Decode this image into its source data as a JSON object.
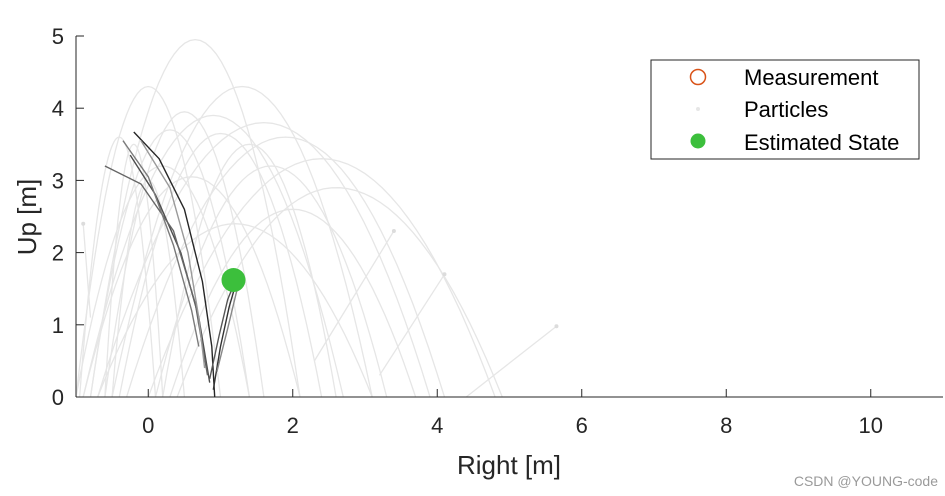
{
  "chart_data": {
    "type": "line",
    "xlabel": "Right [m]",
    "ylabel": "Up [m]",
    "xlim": [
      -1,
      11
    ],
    "ylim": [
      0,
      5
    ],
    "xticks": [
      "0",
      "2",
      "4",
      "6",
      "8",
      "10"
    ],
    "yticks": [
      "0",
      "1",
      "2",
      "3",
      "4",
      "5"
    ],
    "grid": false,
    "legend_location": "top-right",
    "legend": [
      {
        "label": "Measurement",
        "marker": "open-circle",
        "color": "#d95319"
      },
      {
        "label": "Particles",
        "marker": "dot",
        "color": "#e6e6e6"
      },
      {
        "label": "Estimated State",
        "marker": "filled-circle",
        "color": "#3cbf3c"
      }
    ],
    "estimated_state": {
      "x": 1.18,
      "y": 1.62,
      "color": "#3cbf3c"
    },
    "particle_color": "#e6e6e6",
    "particle_trajectories": [
      {
        "x0": -1.0,
        "apex_x": 0.0,
        "apex_y": 4.3,
        "x1": 1.0
      },
      {
        "x0": -0.8,
        "apex_x": 0.65,
        "apex_y": 4.95,
        "x1": 2.1
      },
      {
        "x0": -0.6,
        "apex_x": 0.5,
        "apex_y": 3.95,
        "x1": 1.6
      },
      {
        "x0": -0.5,
        "apex_x": 1.3,
        "apex_y": 4.3,
        "x1": 3.1
      },
      {
        "x0": -0.9,
        "apex_x": 0.9,
        "apex_y": 3.9,
        "x1": 2.7
      },
      {
        "x0": -0.7,
        "apex_x": 1.6,
        "apex_y": 3.8,
        "x1": 3.9
      },
      {
        "x0": -0.3,
        "apex_x": 1.9,
        "apex_y": 3.6,
        "x1": 4.1
      },
      {
        "x0": 0.0,
        "apex_x": 2.4,
        "apex_y": 3.3,
        "x1": 4.8
      },
      {
        "x0": -0.8,
        "apex_x": 0.3,
        "apex_y": 3.7,
        "x1": 1.4
      },
      {
        "x0": -0.4,
        "apex_x": 1.0,
        "apex_y": 3.65,
        "x1": 2.4
      },
      {
        "x0": -1.0,
        "apex_x": 0.2,
        "apex_y": 3.2,
        "x1": 1.4
      },
      {
        "x0": 0.2,
        "apex_x": 1.4,
        "apex_y": 3.5,
        "x1": 2.6
      },
      {
        "x0": -0.6,
        "apex_x": -0.2,
        "apex_y": 3.5,
        "x1": 0.2
      },
      {
        "x0": 0.4,
        "apex_x": 2.6,
        "apex_y": 2.9,
        "x1": 4.9
      },
      {
        "x0": -0.9,
        "apex_x": 0.6,
        "apex_y": 3.05,
        "x1": 2.1
      },
      {
        "x0": 0.1,
        "apex_x": 1.7,
        "apex_y": 3.2,
        "x1": 3.3
      },
      {
        "x0": -0.5,
        "apex_x": 0.0,
        "apex_y": 3.0,
        "x1": 0.5
      },
      {
        "x0": -0.95,
        "apex_x": -0.4,
        "apex_y": 3.6,
        "x1": 0.1
      },
      {
        "x0": 0.3,
        "apex_x": 2.0,
        "apex_y": 2.6,
        "x1": 3.7
      },
      {
        "x0": -0.7,
        "apex_x": 1.2,
        "apex_y": 2.4,
        "x1": 3.1
      }
    ],
    "particle_tracks": [
      {
        "points": [
          [
            4.4,
            0.0
          ],
          [
            5.65,
            0.98
          ]
        ]
      },
      {
        "points": [
          [
            3.2,
            0.3
          ],
          [
            4.1,
            1.7
          ]
        ]
      },
      {
        "points": [
          [
            2.3,
            0.5
          ],
          [
            3.4,
            2.3
          ]
        ]
      },
      {
        "points": [
          [
            -0.8,
            1.1
          ],
          [
            -0.9,
            2.4
          ]
        ]
      }
    ],
    "series": [
      {
        "color": "#262626",
        "points": [
          [
            -0.2,
            3.67
          ],
          [
            0.15,
            3.3
          ],
          [
            0.5,
            2.6
          ],
          [
            0.75,
            1.6
          ],
          [
            0.88,
            0.7
          ],
          [
            0.92,
            0.0
          ]
        ]
      },
      {
        "color": "#4d4d4d",
        "points": [
          [
            -0.25,
            3.35
          ],
          [
            0.1,
            2.8
          ],
          [
            0.45,
            2.0
          ],
          [
            0.7,
            1.1
          ],
          [
            0.85,
            0.2
          ]
        ]
      },
      {
        "color": "#666666",
        "points": [
          [
            -0.6,
            3.2
          ],
          [
            -0.1,
            2.95
          ],
          [
            0.35,
            2.3
          ],
          [
            0.65,
            1.3
          ],
          [
            0.82,
            0.3
          ]
        ]
      },
      {
        "color": "#7a7a7a",
        "points": [
          [
            -0.35,
            3.55
          ],
          [
            0.0,
            3.05
          ],
          [
            0.35,
            2.1
          ],
          [
            0.6,
            1.2
          ],
          [
            0.7,
            0.7
          ]
        ]
      },
      {
        "color": "#9a9a9a",
        "points": [
          [
            -0.1,
            3.55
          ],
          [
            0.3,
            2.9
          ],
          [
            0.55,
            2.0
          ],
          [
            0.7,
            1.1
          ],
          [
            0.78,
            0.4
          ]
        ]
      },
      {
        "color": "#333333",
        "points": [
          [
            0.9,
            0.1
          ],
          [
            1.0,
            0.7
          ],
          [
            1.12,
            1.25
          ],
          [
            1.25,
            1.7
          ]
        ]
      },
      {
        "color": "#555555",
        "points": [
          [
            0.85,
            0.25
          ],
          [
            0.98,
            0.85
          ],
          [
            1.1,
            1.35
          ],
          [
            1.2,
            1.6
          ]
        ]
      },
      {
        "color": "#888888",
        "points": [
          [
            0.95,
            0.35
          ],
          [
            1.1,
            0.95
          ],
          [
            1.22,
            1.45
          ],
          [
            1.32,
            1.7
          ]
        ]
      }
    ]
  },
  "watermark": "CSDN @YOUNG-code"
}
